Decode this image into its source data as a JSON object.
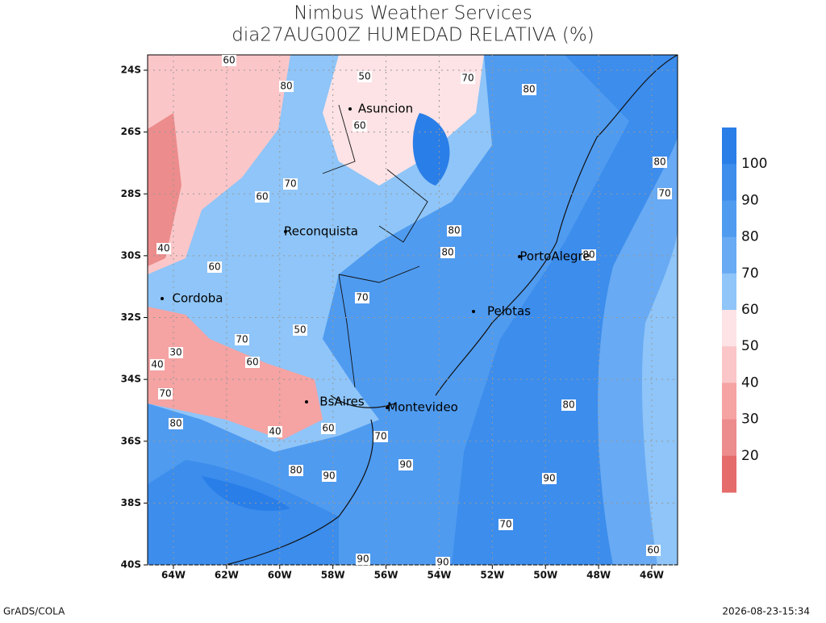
{
  "header": {
    "title": "Nimbus Weather Services",
    "subtitle": "dia27AUG00Z HUMEDAD RELATIVA (%)"
  },
  "axes": {
    "y_labels": [
      "24S",
      "26S",
      "28S",
      "30S",
      "32S",
      "34S",
      "36S",
      "38S",
      "40S"
    ],
    "x_labels": [
      "64W",
      "62W",
      "60W",
      "58W",
      "56W",
      "54W",
      "52W",
      "50W",
      "48W",
      "46W"
    ]
  },
  "cities": [
    "Asuncion",
    "Reconquista",
    "Cordoba",
    "PortoAlegre",
    "Pelotas",
    "BsAires",
    "Montevideo"
  ],
  "colorbar": {
    "levels": [
      100,
      90,
      80,
      70,
      60,
      50,
      40,
      30,
      20
    ],
    "colors": [
      "#2a7ee8",
      "#3c8dec",
      "#4f9bf0",
      "#68aaf3",
      "#8fc5f8",
      "#fde3e5",
      "#fbc6c8",
      "#f5a3a3",
      "#ec8c8c",
      "#e66b6b"
    ]
  },
  "contour_labels": [
    60,
    80,
    50,
    70,
    80,
    80,
    70,
    60,
    70,
    40,
    60,
    60,
    70,
    60,
    70,
    80,
    80,
    50,
    40,
    60,
    70,
    90,
    80,
    90,
    80,
    90,
    70,
    60,
    90,
    90,
    80,
    70,
    40,
    30,
    80
  ],
  "footer": {
    "left": "GrADS/COLA",
    "right": "2026-08-23-15:34"
  }
}
